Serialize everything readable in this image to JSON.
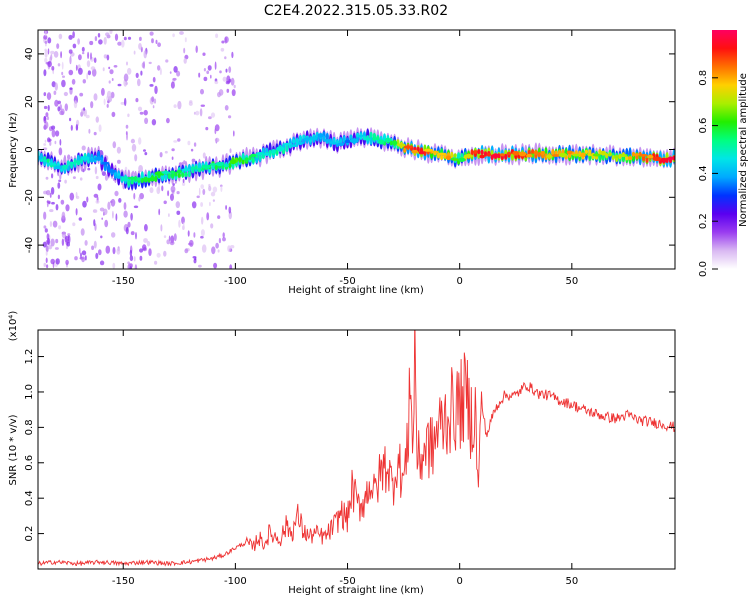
{
  "title": "C2E4.2022.315.05.33.R02",
  "chart_data": [
    {
      "type": "heatmap",
      "xlabel": "Height of straight line (km)",
      "ylabel": "Frequency (Hz)",
      "xlim": [
        -188,
        96
      ],
      "ylim": [
        -50,
        50
      ],
      "x_ticks": [
        -150,
        -100,
        -50,
        0,
        50
      ],
      "y_ticks": [
        -40,
        -20,
        0,
        20,
        40
      ],
      "grid": false,
      "colorbar": {
        "label": "Normalized spectral amplitude",
        "range": [
          0,
          1
        ],
        "ticks": [
          "0.0",
          "0.2",
          "0.4",
          "0.6",
          "0.8"
        ],
        "colors": [
          "#ffffff",
          "#d9b8f2",
          "#9a3df0",
          "#5a00f0",
          "#0033ff",
          "#00aaff",
          "#00e6e6",
          "#00ff80",
          "#22ee00",
          "#aaee00",
          "#ffd000",
          "#ff7000",
          "#ff1010",
          "#ff0060"
        ]
      },
      "ridge": {
        "x": [
          -188,
          -183,
          -178,
          -172,
          -167,
          -161,
          -156,
          -150,
          -145,
          -140,
          -135,
          -130,
          -125,
          -120,
          -115,
          -110,
          -105,
          -100,
          -95,
          -90,
          -85,
          -80,
          -75,
          -70,
          -65,
          -60,
          -55,
          -50,
          -45,
          -40,
          -35,
          -30,
          -25,
          -20,
          -15,
          -10,
          -5,
          0,
          5,
          10,
          20,
          30,
          40,
          50,
          60,
          70,
          80,
          90
        ],
        "freq": [
          -3,
          -5,
          -8,
          -6,
          -4,
          -3,
          -9,
          -13,
          -13,
          -12,
          -11,
          -10,
          -10,
          -9,
          -8,
          -7,
          -7,
          -5,
          -4,
          -3,
          -1,
          0,
          2,
          4,
          5,
          5,
          2,
          4,
          5,
          5,
          4,
          3,
          1,
          0,
          -1,
          -2,
          -3,
          -4,
          -2,
          -2,
          -2,
          -2,
          -2,
          -2,
          -2,
          -3,
          -3,
          -4
        ],
        "amplitude": [
          0.45,
          0.55,
          0.45,
          0.5,
          0.5,
          0.4,
          0.35,
          0.5,
          0.55,
          0.6,
          0.6,
          0.55,
          0.6,
          0.5,
          0.55,
          0.6,
          0.55,
          0.65,
          0.6,
          0.5,
          0.5,
          0.55,
          0.45,
          0.45,
          0.45,
          0.4,
          0.45,
          0.4,
          0.45,
          0.5,
          0.55,
          0.6,
          0.8,
          0.95,
          0.9,
          0.75,
          0.8,
          0.6,
          0.9,
          0.95,
          0.95,
          0.9,
          0.8,
          0.8,
          0.75,
          0.7,
          0.85,
          0.95
        ]
      }
    },
    {
      "type": "line",
      "xlabel": "Height of straight line (km)",
      "ylabel": "SNR (10 * v/v)",
      "y_scale_label": "(x10⁴)",
      "xlim": [
        -188,
        96
      ],
      "ylim": [
        0,
        1.35
      ],
      "x_ticks": [
        -150,
        -100,
        -50,
        0,
        50
      ],
      "y_ticks": [
        0.2,
        0.4,
        0.6,
        0.8,
        1.0,
        1.2
      ],
      "line_color": "#ee3333",
      "series": [
        {
          "x": [
            -188,
            -180,
            -170,
            -160,
            -150,
            -140,
            -130,
            -120,
            -110,
            -105,
            -100,
            -95,
            -92,
            -90,
            -87,
            -85,
            -80,
            -77,
            -75,
            -72,
            -70,
            -67,
            -65,
            -60,
            -55,
            -53,
            -50,
            -48,
            -45,
            -42,
            -40,
            -38,
            -35,
            -32,
            -30,
            -28,
            -25,
            -23,
            -22,
            -21,
            -20,
            -19,
            -18,
            -15,
            -12,
            -10,
            -5,
            0,
            3,
            5,
            7,
            8,
            10,
            12,
            15,
            18,
            20,
            25,
            28,
            30,
            35,
            40,
            45,
            50,
            55,
            60,
            65,
            70,
            75,
            80,
            85,
            90,
            96
          ],
          "y": [
            0.03,
            0.04,
            0.03,
            0.04,
            0.03,
            0.04,
            0.03,
            0.04,
            0.06,
            0.08,
            0.12,
            0.15,
            0.12,
            0.18,
            0.14,
            0.2,
            0.17,
            0.25,
            0.2,
            0.3,
            0.22,
            0.18,
            0.2,
            0.18,
            0.26,
            0.32,
            0.28,
            0.45,
            0.35,
            0.4,
            0.5,
            0.42,
            0.55,
            0.6,
            0.45,
            0.62,
            0.5,
            0.7,
            1.28,
            0.55,
            1.3,
            0.65,
            0.6,
            0.7,
            0.68,
            0.78,
            0.88,
            0.92,
            0.98,
            0.85,
            0.9,
            0.48,
            0.92,
            0.75,
            0.88,
            0.95,
            0.98,
            0.98,
            1.02,
            1.04,
            0.99,
            0.98,
            0.95,
            0.93,
            0.9,
            0.88,
            0.86,
            0.85,
            0.87,
            0.84,
            0.83,
            0.82,
            0.8
          ]
        }
      ]
    }
  ]
}
